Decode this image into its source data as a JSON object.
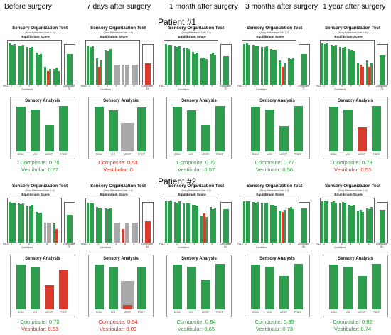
{
  "column_headers": [
    "Before surgery",
    "7 days after surgery",
    "1 month after surgery",
    "3 months after surgery",
    "1   year   after surgery"
  ],
  "panel_text": {
    "sot_title": "Sensory Organization Test",
    "sot_subtitle": "(Sway Referenced Gain: 1.0)",
    "equilibrium_title": "Equilibrium Score",
    "fall": "FALL",
    "conditions_word": "Conditions",
    "composite_word": "Composite",
    "condition_numbers": [
      "1",
      "2",
      "3",
      "4",
      "5",
      "6"
    ],
    "sa_title": "Sensory Analysis",
    "sa_labels": [
      "SOM",
      "VIS",
      "VEST",
      "PREF"
    ],
    "composite_prefix": "Composite: ",
    "vestibular_prefix": "Vestibular: "
  },
  "colors": {
    "green": "#2e9e4e",
    "red": "#d93a2b",
    "gray": "#a9a9a9",
    "score_green": "#2e9a3c",
    "score_red": "#d52b1e"
  },
  "patients": [
    {
      "title": "Patient #1",
      "panels": [
        {
          "composite_tag": "76",
          "eq": [
            [
              93,
              90,
              92
            ],
            [
              89,
              88,
              90
            ],
            [
              85,
              84,
              86
            ],
            [
              72,
              68,
              70
            ],
            [
              40,
              30,
              35
            ],
            [
              35,
              38,
              30
            ]
          ],
          "eq_red": [
            [],
            [],
            [],
            [],
            [
              1
            ],
            []
          ],
          "composite": 76,
          "sa": [
            98,
            92,
            58,
            100
          ],
          "sa_red": [],
          "composite_score": "Composite: 0.76",
          "vestibular_score": "Vestibular: 0.57",
          "composite_color": "green",
          "vestibular_color": "green"
        },
        {
          "composite_tag": "53",
          "eq": [
            [
              88,
              86,
              87
            ],
            [
              60,
              40,
              55
            ],
            [
              78,
              76,
              80
            ],
            [
              0,
              0,
              0
            ],
            [
              0,
              0,
              0
            ],
            [
              0,
              0,
              0
            ]
          ],
          "eq_red": [
            [],
            [
              1
            ],
            [],
            [],
            [],
            []
          ],
          "eq_gray": [
            4,
            5,
            6
          ],
          "composite": 53,
          "sa": [
            98,
            90,
            0,
            97
          ],
          "sa_red": [],
          "sa_gray": [
            2
          ],
          "composite_score": "Composite: 0.53",
          "vestibular_score": "Vestibular: 0",
          "composite_color": "red",
          "vestibular_color": "red"
        },
        {
          "composite_tag": "72",
          "eq": [
            [
              92,
              91,
              90
            ],
            [
              88,
              86,
              87
            ],
            [
              84,
              82,
              80
            ],
            [
              75,
              70,
              72
            ],
            [
              60,
              62,
              58
            ],
            [
              70,
              72,
              68
            ]
          ],
          "eq_red": [
            [],
            [],
            [],
            [],
            [],
            []
          ],
          "composite": 72,
          "sa": [
            98,
            90,
            58,
            100
          ],
          "sa_red": [],
          "composite_score": "Composite: 0.72",
          "vestibular_score": "Vestibular: 0.57",
          "composite_color": "green",
          "vestibular_color": "green"
        },
        {
          "composite_tag": "77",
          "eq": [
            [
              92,
              93,
              91
            ],
            [
              90,
              89,
              88
            ],
            [
              86,
              85,
              87
            ],
            [
              80,
              78,
              79
            ],
            [
              55,
              40,
              50
            ],
            [
              60,
              58,
              62
            ]
          ],
          "eq_red": [
            [],
            [],
            [],
            [],
            [
              1
            ],
            []
          ],
          "composite": 77,
          "sa": [
            98,
            92,
            56,
            100
          ],
          "sa_red": [],
          "composite_score": "Composite: 0.77",
          "vestibular_score": "Vestibular: 0.56",
          "composite_color": "green",
          "vestibular_color": "green"
        },
        {
          "composite_tag": "73",
          "eq": [
            [
              93,
              92,
              94
            ],
            [
              90,
              89,
              91
            ],
            [
              86,
              84,
              85
            ],
            [
              80,
              78,
              76
            ],
            [
              50,
              45,
              40
            ],
            [
              55,
              40,
              50
            ]
          ],
          "eq_red": [
            [],
            [],
            [],
            [],
            [
              1,
              2
            ],
            [
              1
            ]
          ],
          "composite": 73,
          "sa": [
            98,
            92,
            53,
            100
          ],
          "sa_red": [
            2
          ],
          "composite_score": "Composite: 0.73",
          "vestibular_score": "Vestibular: 0.53",
          "composite_color": "green",
          "vestibular_color": "red"
        }
      ]
    },
    {
      "title": "Patient #2",
      "panels": [
        {
          "composite_tag": "70",
          "eq": [
            [
              92,
              90,
              91
            ],
            [
              88,
              87,
              89
            ],
            [
              84,
              83,
              85
            ],
            [
              70,
              66,
              68
            ],
            [
              0,
              0,
              0
            ],
            [
              45,
              30,
              0
            ]
          ],
          "eq_red": [
            [],
            [],
            [],
            [],
            [],
            [
              1
            ]
          ],
          "eq_gray": [
            5
          ],
          "composite": 70,
          "sa": [
            98,
            92,
            53,
            88
          ],
          "sa_red": [
            2,
            3
          ],
          "composite_score": "Composite: 0.70",
          "vestibular_score": "Vestibular: 0.53",
          "composite_color": "green",
          "vestibular_color": "red"
        },
        {
          "composite_tag": "54",
          "eq": [
            [
              90,
              89,
              88
            ],
            [
              80,
              78,
              79
            ],
            [
              78,
              76,
              77
            ],
            [
              0,
              0,
              0
            ],
            [
              30,
              0,
              0
            ],
            [
              0,
              0,
              0
            ]
          ],
          "eq_red": [
            [],
            [],
            [],
            [],
            [
              0
            ],
            []
          ],
          "eq_gray": [
            4,
            5,
            6
          ],
          "composite": 54,
          "sa": [
            98,
            92,
            9,
            92
          ],
          "sa_red": [
            2
          ],
          "sa_gray": [
            2
          ],
          "composite_score": "Composite: 0.54",
          "vestibular_score": "Vestibular: 0.09",
          "composite_color": "red",
          "vestibular_color": "red"
        },
        {
          "composite_tag": "84",
          "eq": [
            [
              94,
              93,
              95
            ],
            [
              92,
              91,
              93
            ],
            [
              89,
              90,
              88
            ],
            [
              85,
              86,
              84
            ],
            [
              60,
              66,
              58
            ],
            [
              80,
              76,
              78
            ]
          ],
          "eq_red": [
            [],
            [],
            [],
            [],
            [
              1
            ],
            []
          ],
          "composite": 84,
          "sa": [
            98,
            94,
            65,
            100
          ],
          "sa_red": [],
          "composite_score": "Composite: 0.84",
          "vestibular_score": "Vestibular: 0.65",
          "composite_color": "green",
          "vestibular_color": "green"
        },
        {
          "composite_tag": "85",
          "eq": [
            [
              94,
              93,
              94
            ],
            [
              92,
              91,
              92
            ],
            [
              90,
              89,
              90
            ],
            [
              85,
              86,
              84
            ],
            [
              72,
              70,
              74
            ],
            [
              78,
              80,
              76
            ]
          ],
          "eq_red": [
            [],
            [],
            [],
            [],
            [
              1
            ],
            []
          ],
          "composite": 85,
          "sa": [
            98,
            94,
            73,
            100
          ],
          "sa_red": [],
          "composite_score": "Composite: 0.85",
          "vestibular_score": "Vestibular: 0.73",
          "composite_color": "green",
          "vestibular_color": "green"
        },
        {
          "composite_tag": "82",
          "eq": [
            [
              94,
              95,
              93
            ],
            [
              92,
              93,
              91
            ],
            [
              90,
              92,
              91
            ],
            [
              86,
              84,
              85
            ],
            [
              72,
              74,
              70
            ],
            [
              78,
              76,
              80
            ]
          ],
          "eq_red": [
            [],
            [],
            [],
            [],
            [],
            []
          ],
          "composite": 82,
          "sa": [
            98,
            94,
            74,
            100
          ],
          "sa_red": [],
          "composite_score": "Composite: 0.82",
          "vestibular_score": "Vestibular: 0.74",
          "composite_color": "green",
          "vestibular_color": "green"
        }
      ]
    }
  ]
}
